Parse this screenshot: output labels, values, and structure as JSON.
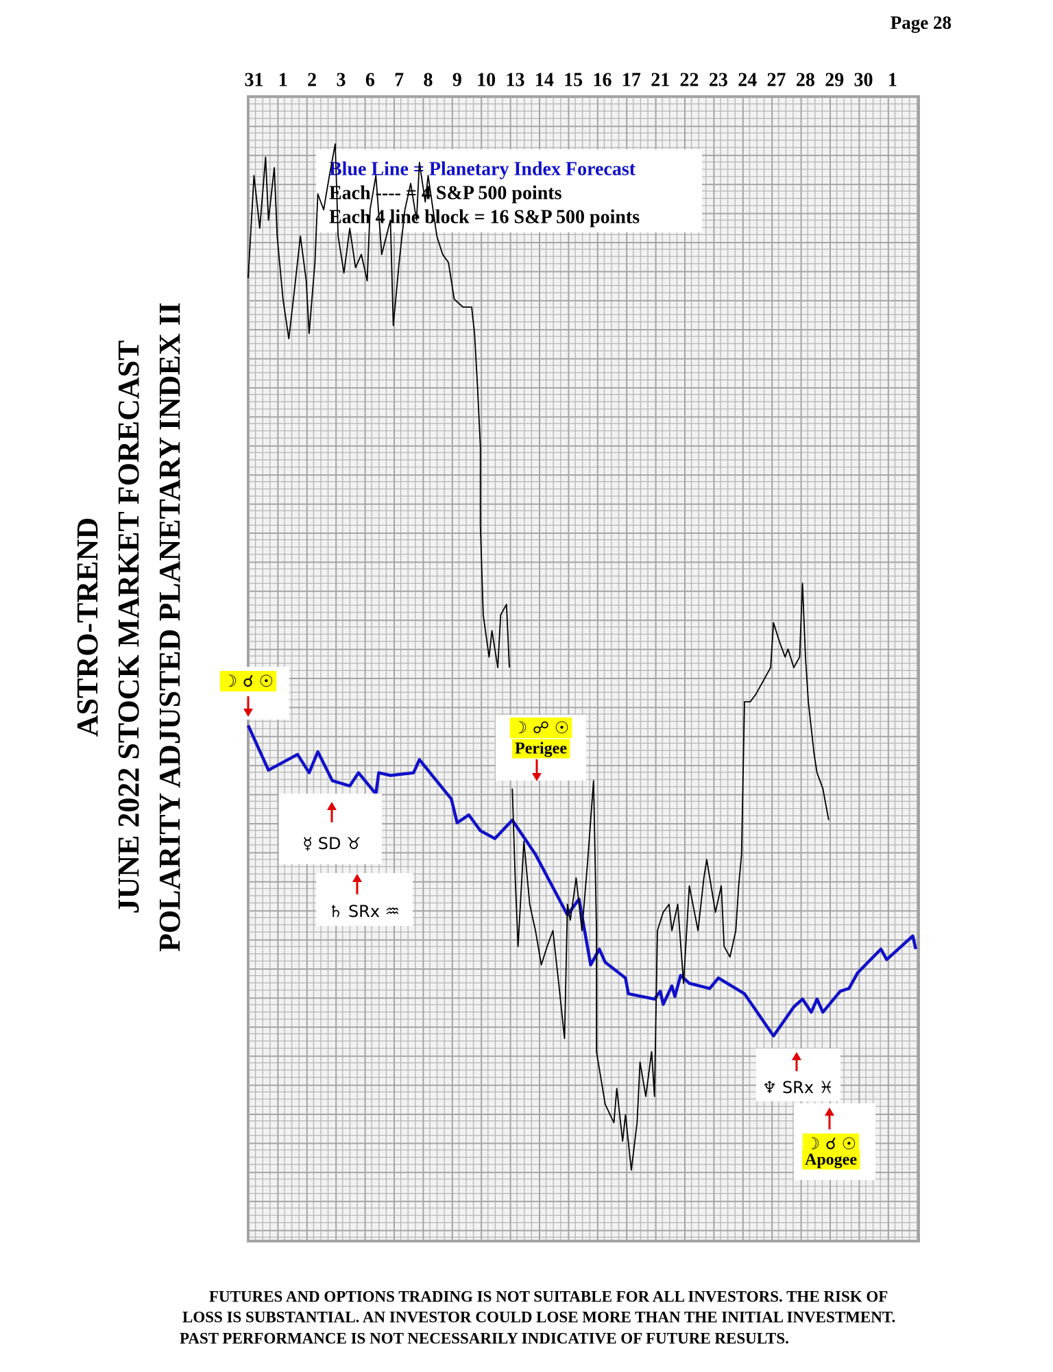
{
  "page_number": "Page  28",
  "title_lines": [
    "ASTRO-TREND",
    "JUNE 2022  STOCK MARKET FORECAST",
    "POLARITY ADJUSTED PLANETARY INDEX II"
  ],
  "chart_data": {
    "type": "line",
    "categories": [
      "31",
      "1",
      "2",
      "3",
      "6",
      "7",
      "8",
      "9",
      "10",
      "13",
      "14",
      "15",
      "16",
      "17",
      "21",
      "22",
      "23",
      "24",
      "27",
      "28",
      "29",
      "30",
      "1"
    ],
    "xlim": [
      -0.2,
      22.9
    ],
    "ylim": [
      0,
      435
    ],
    "legend_lines": [
      "Blue Line = Planetary Index Forecast",
      "Each ---- = 4 S&P 500 points",
      "Each 4 line block =  16  S&P 500 points"
    ],
    "series": [
      {
        "color": "#000000",
        "x": [
          -0.2,
          0.0,
          0.2,
          0.4,
          0.5,
          0.7,
          0.8,
          1.0,
          1.2,
          1.4,
          1.6,
          1.8,
          1.9,
          2.1,
          2.2,
          2.4,
          2.6,
          2.8,
          2.9,
          3.1,
          3.3,
          3.5,
          3.7,
          3.9,
          4.0,
          4.2,
          4.4,
          4.7,
          4.8,
          5.0,
          5.2,
          5.4,
          5.6,
          5.7,
          5.9,
          6.0,
          6.3,
          6.5,
          6.7,
          6.9,
          7.2,
          7.5,
          7.6,
          7.7,
          7.8,
          7.8,
          7.9,
          8.1,
          8.2,
          8.4,
          8.5,
          8.7,
          8.8,
          null,
          8.9,
          9.0,
          9.1,
          9.3,
          9.5,
          9.7,
          9.9,
          10.1,
          10.3,
          10.5,
          10.7,
          10.8,
          10.9,
          11.1,
          11.3,
          11.5,
          11.7,
          11.8,
          11.8,
          12.1,
          12.4,
          12.5,
          12.7,
          12.8,
          13.0,
          13.2,
          13.3,
          13.5,
          13.7,
          13.8,
          13.9,
          14.1,
          14.3,
          14.4,
          14.6,
          14.8,
          15.0,
          15.3,
          15.5,
          15.6,
          15.9,
          16.1,
          16.2,
          16.4,
          16.6,
          16.7,
          16.8,
          16.9,
          17.1,
          17.3,
          17.5,
          17.8,
          17.9,
          18.1,
          18.3,
          18.4,
          18.6,
          18.8,
          18.9,
          19.0,
          19.1,
          19.3,
          19.4,
          19.6,
          19.8
        ],
        "values": [
          366,
          405,
          385,
          412,
          388,
          408,
          382,
          358,
          343,
          362,
          382,
          365,
          345,
          372,
          398,
          392,
          405,
          417,
          382,
          368,
          385,
          370,
          375,
          365,
          392,
          405,
          375,
          388,
          348,
          372,
          392,
          402,
          388,
          410,
          395,
          405,
          382,
          375,
          372,
          358,
          355,
          355,
          345,
          325,
          302,
          272,
          238,
          222,
          232,
          218,
          238,
          242,
          218,
          null,
          172,
          138,
          112,
          152,
          128,
          118,
          105,
          112,
          118,
          98,
          77,
          128,
          122,
          138,
          118,
          145,
          175,
          118,
          72,
          52,
          45,
          58,
          38,
          48,
          27,
          45,
          68,
          55,
          72,
          55,
          118,
          125,
          128,
          118,
          128,
          98,
          135,
          118,
          138,
          145,
          125,
          135,
          112,
          108,
          118,
          135,
          147,
          205,
          205,
          208,
          212,
          218,
          235,
          228,
          222,
          225,
          218,
          222,
          250,
          222,
          205,
          185,
          178,
          172,
          160
        ]
      },
      {
        "color": "#1010c8",
        "x": [
          -0.2,
          0.5,
          1.5,
          1.9,
          2.2,
          2.7,
          3.3,
          3.6,
          4.2,
          4.3,
          4.7,
          5.5,
          5.7,
          6.8,
          7.0,
          7.4,
          7.8,
          8.3,
          8.9,
          9.7,
          10.8,
          11.2,
          11.6,
          11.9,
          12.1,
          12.8,
          12.9,
          13.8,
          14.0,
          14.1,
          14.4,
          14.5,
          14.7,
          15.0,
          15.7,
          16.0,
          16.9,
          17.9,
          18.6,
          18.9,
          19.2,
          19.4,
          19.6,
          20.2,
          20.5,
          20.8,
          21.6,
          21.8,
          22.7,
          22.8
        ],
        "values": [
          196,
          179,
          185,
          178,
          186,
          175,
          173,
          178,
          170,
          178,
          177,
          178,
          183,
          168,
          159,
          162,
          156,
          153,
          160,
          147,
          124,
          130,
          105,
          111,
          106,
          100,
          94,
          92,
          95,
          90,
          97,
          93,
          101,
          98,
          96,
          100,
          94,
          78,
          89,
          92,
          87,
          92,
          87,
          95,
          96,
          102,
          111,
          107,
          116,
          111
        ]
      }
    ],
    "annotations": [
      {
        "symbols": "☽ ☌ ☉"
      },
      {
        "symbols": "☽ ☍ ☉",
        "label": "Perigee"
      },
      {
        "symbols": "☿ SD ♉"
      },
      {
        "symbols": "♄ SRx ♒"
      },
      {
        "symbols": "♆ SRx ♓"
      },
      {
        "symbols": "☽ ☌ ☉",
        "label": "Apogee"
      }
    ]
  },
  "disclaimer": [
    "FUTURES AND OPTIONS TRADING IS NOT SUITABLE FOR ALL INVESTORS.  THE RISK OF",
    "LOSS IS SUBSTANTIAL.  AN INVESTOR COULD LOSE MORE THAN THE INITIAL INVESTMENT.",
    "PAST PERFORMANCE IS NOT NECESSARILY INDICATIVE OF FUTURE RESULTS."
  ]
}
